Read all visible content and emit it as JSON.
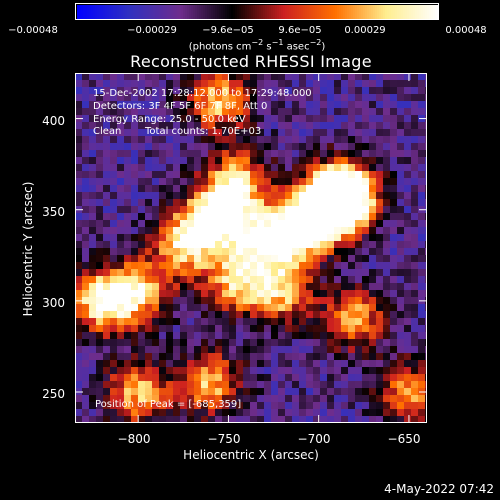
{
  "chart_data": {
    "type": "heatmap",
    "title": "Reconstructed RHESSI Image",
    "xlabel": "Heliocentric X (arcsec)",
    "ylabel": "Heliocentric Y (arcsec)",
    "xlim": [
      -835,
      -640
    ],
    "ylim": [
      233,
      425
    ],
    "xticks": [
      -800,
      -750,
      -700,
      -650
    ],
    "yticks": [
      250,
      300,
      350,
      400
    ],
    "xtick_labels": [
      "−800",
      "−750",
      "−700",
      "−650"
    ],
    "ytick_labels": [
      "250",
      "300",
      "350",
      "400"
    ],
    "colorbar": {
      "ticks": [
        -0.00048,
        -0.00029,
        -9.6e-05,
        9.6e-05,
        0.00029,
        0.00048
      ],
      "tick_labels": [
        "−0.00048",
        "−0.00029",
        "−9.6e−05",
        "9.6e−05",
        "0.00029",
        "0.00048"
      ],
      "units_prefix": "(photons cm",
      "units_exp1": "−2",
      "units_mid1": " s",
      "units_exp2": "−1",
      "units_mid2": " asec",
      "units_exp3": "−2",
      "units_suffix": ")",
      "range": [
        -0.00048,
        0.00048
      ],
      "colormap": [
        "#0000ff",
        "#3030c0",
        "#6e2d8c",
        "#000000",
        "#cc2020",
        "#ff7000",
        "#ffee90",
        "#ffffff"
      ]
    },
    "annotations": {
      "time": "15-Dec-2002 17:28:12.000 to 17:29:48.000",
      "detectors": "Detectors: 3F 4F 5F 6F 7F 8F, Att 0",
      "energy": "Energy Range: 25.0 - 50.0 keV",
      "method": "Clean",
      "counts": "Total counts: 1.70E+03",
      "peak": "Position of Peak = [-685,359]"
    },
    "peak_position": [
      -685,
      359
    ],
    "bright_ridge": [
      {
        "x": -820,
        "y": 300,
        "level": 0.00044
      },
      {
        "x": -800,
        "y": 305,
        "level": 0.0003
      },
      {
        "x": -775,
        "y": 330,
        "level": 0.00032
      },
      {
        "x": -760,
        "y": 345,
        "level": 0.00042
      },
      {
        "x": -745,
        "y": 365,
        "level": 0.00036
      },
      {
        "x": -735,
        "y": 335,
        "level": 0.0003
      },
      {
        "x": -715,
        "y": 335,
        "level": 0.00038
      },
      {
        "x": -700,
        "y": 348,
        "level": 0.00036
      },
      {
        "x": -690,
        "y": 355,
        "level": 0.00045
      },
      {
        "x": -685,
        "y": 359,
        "level": 0.00048
      },
      {
        "x": -800,
        "y": 250,
        "level": 0.0003
      },
      {
        "x": -760,
        "y": 255,
        "level": 0.00028
      },
      {
        "x": -745,
        "y": 310,
        "level": 0.0003
      },
      {
        "x": -720,
        "y": 305,
        "level": 0.00028
      },
      {
        "x": -680,
        "y": 290,
        "level": 0.00026
      },
      {
        "x": -650,
        "y": 250,
        "level": 0.00024
      },
      {
        "x": -755,
        "y": 410,
        "level": 0.0003
      }
    ]
  },
  "footer": {
    "date": "4-May-2022 07:42"
  }
}
